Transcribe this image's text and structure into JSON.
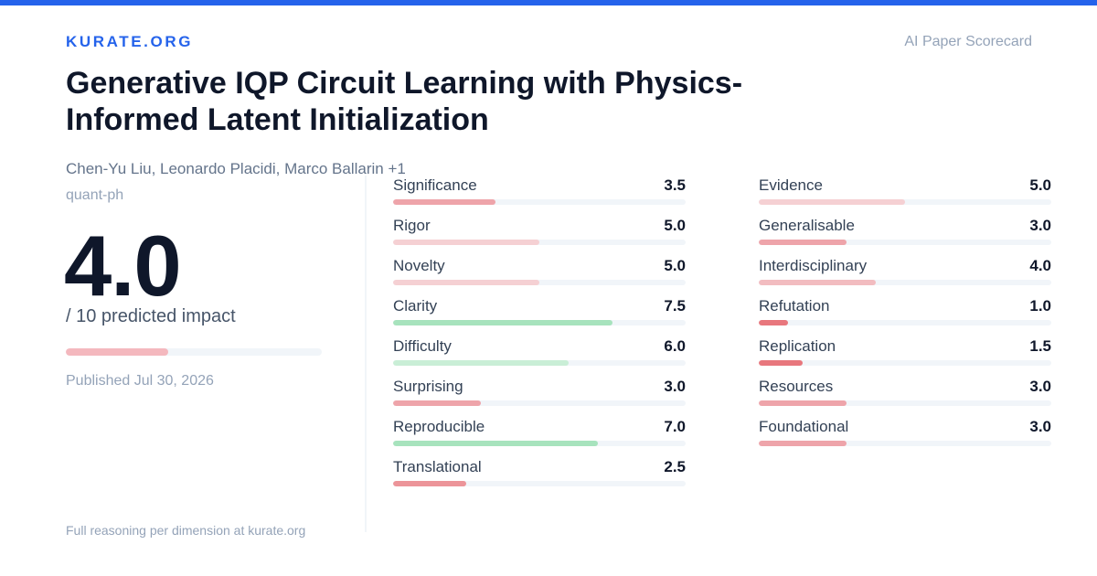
{
  "header": {
    "brand": "KURATE.ORG",
    "tagline": "AI Paper Scorecard",
    "accent_color": "#2563eb"
  },
  "paper": {
    "title": "Generative IQP Circuit Learning with Physics-Informed Latent Initialization",
    "authors": "Chen-Yu Liu, Leonardo Placidi, Marco Ballarin +1",
    "category": "quant-ph",
    "published": "Published Jul 30, 2026"
  },
  "impact": {
    "score": "4.0",
    "suffix": "/ 10 predicted impact",
    "fraction": 0.4,
    "bar_color": "#f4b8be"
  },
  "footer": {
    "text": "Full reasoning per dimension at kurate.org"
  },
  "dimensions": {
    "left": [
      {
        "name": "Significance",
        "score": "3.5",
        "fraction": 0.35,
        "color": "#eea4aa"
      },
      {
        "name": "Rigor",
        "score": "5.0",
        "fraction": 0.5,
        "color": "#f5d0d3"
      },
      {
        "name": "Novelty",
        "score": "5.0",
        "fraction": 0.5,
        "color": "#f5d0d3"
      },
      {
        "name": "Clarity",
        "score": "7.5",
        "fraction": 0.75,
        "color": "#a7e3bd"
      },
      {
        "name": "Difficulty",
        "score": "6.0",
        "fraction": 0.6,
        "color": "#c9eed6"
      },
      {
        "name": "Surprising",
        "score": "3.0",
        "fraction": 0.3,
        "color": "#eea4aa"
      },
      {
        "name": "Reproducible",
        "score": "7.0",
        "fraction": 0.7,
        "color": "#a7e3bd"
      },
      {
        "name": "Translational",
        "score": "2.5",
        "fraction": 0.25,
        "color": "#ec9499"
      }
    ],
    "right": [
      {
        "name": "Evidence",
        "score": "5.0",
        "fraction": 0.5,
        "color": "#f5d0d3"
      },
      {
        "name": "Generalisable",
        "score": "3.0",
        "fraction": 0.3,
        "color": "#eea4aa"
      },
      {
        "name": "Interdisciplinary",
        "score": "4.0",
        "fraction": 0.4,
        "color": "#f2bcc0"
      },
      {
        "name": "Refutation",
        "score": "1.0",
        "fraction": 0.1,
        "color": "#e8777d"
      },
      {
        "name": "Replication",
        "score": "1.5",
        "fraction": 0.15,
        "color": "#e8777d"
      },
      {
        "name": "Resources",
        "score": "3.0",
        "fraction": 0.3,
        "color": "#eea4aa"
      },
      {
        "name": "Foundational",
        "score": "3.0",
        "fraction": 0.3,
        "color": "#eea4aa"
      }
    ]
  }
}
